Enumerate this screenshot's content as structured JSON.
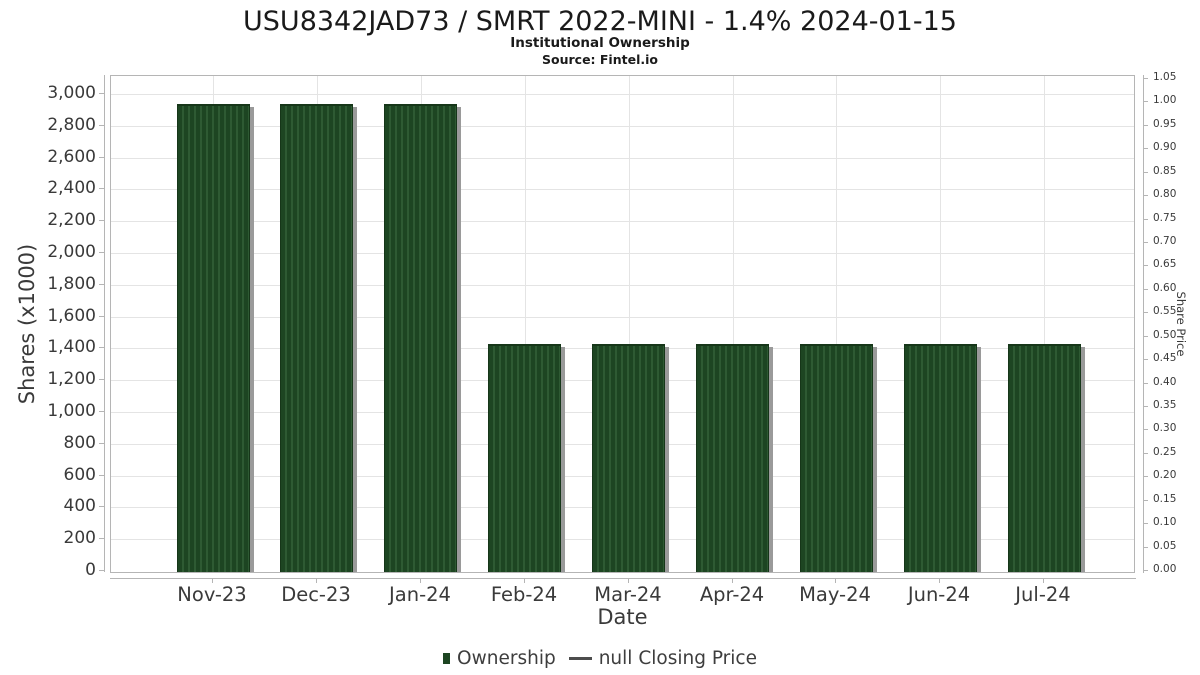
{
  "chart_data": {
    "type": "bar",
    "title": "USU8342JAD73 / SMRT 2022-MINI - 1.4% 2024-01-15",
    "subtitle": "Institutional Ownership",
    "source": "Source: Fintel.io",
    "xlabel": "Date",
    "ylabel_left": "Shares (x1000)",
    "ylabel_right": "Share Price",
    "categories": [
      "Nov-23",
      "Dec-23",
      "Jan-24",
      "Feb-24",
      "Mar-24",
      "Apr-24",
      "May-24",
      "Jun-24",
      "Jul-24"
    ],
    "series": [
      {
        "name": "Ownership",
        "type": "bar",
        "axis": "left",
        "values": [
          2940,
          2940,
          2940,
          1425,
          1425,
          1425,
          1425,
          1425,
          1425
        ]
      },
      {
        "name": "null Closing Price",
        "type": "line",
        "axis": "right",
        "values": []
      }
    ],
    "ylim_left": [
      0,
      3000
    ],
    "ytick_step_left": 200,
    "yticks_left": [
      "0",
      "200",
      "400",
      "600",
      "800",
      "1,000",
      "1,200",
      "1,400",
      "1,600",
      "1,800",
      "2,000",
      "2,200",
      "2,400",
      "2,600",
      "2,800",
      "3,000"
    ],
    "ylim_right": [
      0,
      1.05
    ],
    "ytick_step_right": 0.05,
    "yticks_right": [
      "0.00",
      "0.05",
      "0.10",
      "0.15",
      "0.20",
      "0.25",
      "0.30",
      "0.35",
      "0.40",
      "0.45",
      "0.50",
      "0.55",
      "0.60",
      "0.65",
      "0.70",
      "0.75",
      "0.80",
      "0.85",
      "0.90",
      "0.95",
      "1.00",
      "1.05"
    ],
    "grid": true,
    "legend_position": "bottom"
  },
  "legend": {
    "items": [
      {
        "label": "Ownership",
        "marker": "square",
        "color": "#1d4522"
      },
      {
        "label": "null Closing Price",
        "marker": "line",
        "color": "#4d4d4d"
      }
    ]
  },
  "colors": {
    "bar_fill": "#1d4522",
    "bar_hatch": "#2e5a33",
    "bar_border": "#163619",
    "bar_shadow": "#9a9a9a",
    "grid_line": "#e4e4e4",
    "axis_line": "#b5b5b5",
    "tick_text": "#3a3a3a",
    "title_text": "#1a1a1a",
    "legend_text": "#3d3d3d",
    "legend_line": "#4d4d4d"
  }
}
